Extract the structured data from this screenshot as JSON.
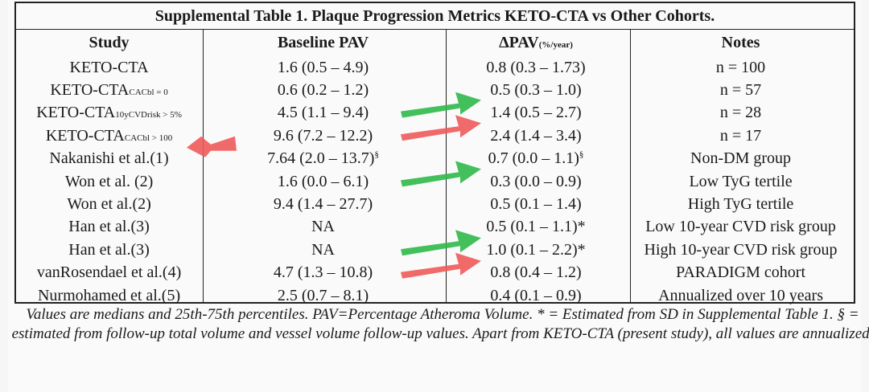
{
  "table": {
    "title": "Supplemental Table 1. Plaque Progression Metrics KETO-CTA vs Other Cohorts.",
    "headers": {
      "study": "Study",
      "baseline": "Baseline PAV",
      "delta_main": "ΔPAV",
      "delta_unit": "(%/year)",
      "notes": "Notes"
    },
    "rows": [
      {
        "study": "KETO-CTA",
        "study_sub": "",
        "baseline": "1.6 (0.5 – 4.9)",
        "baseline_sup": "",
        "delta": "0.8 (0.3 – 1.73)",
        "delta_sup": "",
        "notes": "n = 100"
      },
      {
        "study": "KETO-CTA",
        "study_sub": "CACbl = 0",
        "baseline": "0.6 (0.2 – 1.2)",
        "baseline_sup": "",
        "delta": "0.5 (0.3 – 1.0)",
        "delta_sup": "",
        "notes": "n = 57"
      },
      {
        "study": "KETO-CTA",
        "study_sub": "10yCVDrisk > 5%",
        "baseline": "4.5 (1.1 – 9.4)",
        "baseline_sup": "",
        "delta": "1.4 (0.5 – 2.7)",
        "delta_sup": "",
        "notes": "n = 28"
      },
      {
        "study": "KETO-CTA",
        "study_sub": "CACbl > 100",
        "baseline": "9.6 (7.2 – 12.2)",
        "baseline_sup": "",
        "delta": "2.4 (1.4 – 3.4)",
        "delta_sup": "",
        "notes": "n = 17"
      },
      {
        "study": "Nakanishi et al.(1)",
        "study_sub": "",
        "baseline": "7.64 (2.0 – 13.7)",
        "baseline_sup": "§",
        "delta": "0.7 (0.0 – 1.1)",
        "delta_sup": "§",
        "notes": "Non-DM group"
      },
      {
        "study": "Won et al. (2)",
        "study_sub": "",
        "baseline": "1.6 (0.0 – 6.1)",
        "baseline_sup": "",
        "delta": "0.3 (0.0 – 0.9)",
        "delta_sup": "",
        "notes": "Low TyG tertile"
      },
      {
        "study": "Won et al.(2)",
        "study_sub": "",
        "baseline": "9.4 (1.4 – 27.7)",
        "baseline_sup": "",
        "delta": "0.5 (0.1 – 1.4)",
        "delta_sup": "",
        "notes": "High TyG tertile"
      },
      {
        "study": "Han et al.(3)",
        "study_sub": "",
        "baseline": "NA",
        "baseline_sup": "",
        "delta": "0.5 (0.1 – 1.1)*",
        "delta_sup": "",
        "notes": "Low 10-year CVD risk group"
      },
      {
        "study": "Han et al.(3)",
        "study_sub": "",
        "baseline": "NA",
        "baseline_sup": "",
        "delta": "1.0 (0.1 – 2.2)*",
        "delta_sup": "",
        "notes": "High 10-year CVD risk group"
      },
      {
        "study": "vanRosendael et al.(4)",
        "study_sub": "",
        "baseline": "4.7 (1.3 – 10.8)",
        "baseline_sup": "",
        "delta": "0.8 (0.4 – 1.2)",
        "delta_sup": "",
        "notes": "PARADIGM cohort"
      },
      {
        "study": "Nurmohamed et al.(5)",
        "study_sub": "",
        "baseline": "2.5 (0.7 – 8.1)",
        "baseline_sup": "",
        "delta": "0.4 (0.1 – 0.9)",
        "delta_sup": "",
        "notes": "Annualized over 10 years"
      }
    ],
    "footnote": "Values are medians and 25th-75th percentiles. PAV=Percentage Atheroma Volume. * = Estimated from SD in Supplemental Table 1. § = estimated from follow-up total volume and vessel volume follow-up values. Apart from KETO-CTA (present study), all values are annualized."
  },
  "annotations": {
    "green_color": "#2fb84a",
    "red_color": "#ef5a5a",
    "arrows": [
      {
        "color": "green",
        "row": 1
      },
      {
        "color": "red",
        "row": 2
      },
      {
        "color": "red",
        "row": 3
      },
      {
        "color": "green",
        "row": 4
      },
      {
        "color": "green",
        "row": 7
      },
      {
        "color": "red",
        "row": 8
      }
    ]
  }
}
